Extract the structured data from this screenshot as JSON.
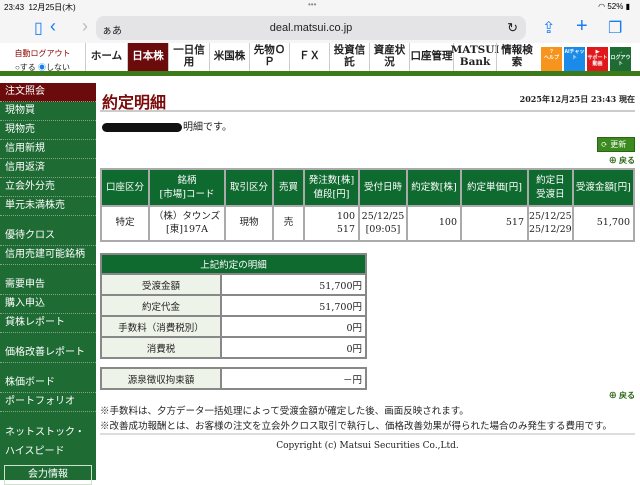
{
  "status_bar": {
    "time": "23:43",
    "date": "12月25日(木)",
    "battery": "52%"
  },
  "browser": {
    "aa": "ぁあ",
    "url": "deal.matsui.co.jp"
  },
  "nav": {
    "auto_logout": "自動ログアウト",
    "opt_on": "する",
    "opt_off": "しない",
    "selected": "しない",
    "items": [
      "ホーム",
      "日本株",
      "一日信用",
      "米国株",
      "先物ＯＰ",
      "ＦＸ",
      "投資信託",
      "資産状況",
      "口座管理",
      "MATSUI Bank",
      "情報検索"
    ],
    "active": "日本株",
    "icons": [
      {
        "label": "ヘルプ",
        "color": "#f7941d"
      },
      {
        "label": "AIチャット",
        "color": "#1a8be8"
      },
      {
        "label": "サポート動画",
        "color": "#e0181c"
      },
      {
        "label": "ログアウト",
        "color": "#1e6b34"
      }
    ]
  },
  "sidebar": {
    "groups": [
      [
        "注文照会",
        "現物買",
        "現物売",
        "信用新規",
        "信用返済",
        "立会外分売",
        "単元未満株売"
      ],
      [
        "優待クロス",
        "信用売建可能銘柄"
      ],
      [
        "需要申告",
        "購入申込",
        "貸株レポート"
      ],
      [
        "価格改善レポート"
      ],
      [
        "株価ボード",
        "ポートフォリオ"
      ]
    ],
    "extra": [
      "ネットストック・",
      "ハイスピード"
    ],
    "button": "会力情報",
    "active": "注文照会"
  },
  "page": {
    "title": "約定明細",
    "as_of": "2025年12月25日 23:43 現在",
    "message_suffix": "明細です。",
    "refresh": "更新",
    "back": "戻る"
  },
  "trade_table": {
    "headers": [
      "口座区分",
      [
        "銘柄",
        "[市場]コード"
      ],
      "取引区分",
      "売買",
      [
        "発注数[株]",
        "値段[円]"
      ],
      "受付日時",
      "約定数[株]",
      "約定単価[円]",
      [
        "約定日",
        "受渡日"
      ],
      "受渡金額[円]"
    ],
    "rows": [
      {
        "account": "特定",
        "name": "（株）タウンズ",
        "code": "[東]197A",
        "type": "現物",
        "side": "売",
        "order_qty": "100",
        "price": "517",
        "received_date": "25/12/25",
        "received_time": "[09:05]",
        "exec_qty": "100",
        "exec_price": "517",
        "trade_date": "25/12/25",
        "settle_date": "25/12/29",
        "amount": "51,700"
      }
    ]
  },
  "summary": {
    "title": "上記約定の明細",
    "rows": [
      {
        "label": "受渡金額",
        "value": "51,700円"
      },
      {
        "label": "約定代金",
        "value": "51,700円"
      },
      {
        "label": "手数料（消費税別）",
        "value": "0円"
      },
      {
        "label": "消費税",
        "value": "0円"
      }
    ],
    "withholding": {
      "label": "源泉徴収拘束額",
      "value": "－円"
    }
  },
  "notes": [
    "※手数料は、夕方データ一括処理によって受渡金額が確定した後、画面反映されます。",
    "※改善成功報酬とは、お客様の注文を立会外クロス取引で執行し、価格改善効果が得られた場合のみ発生する費用です。"
  ],
  "copyright": "Copyright (c) Matsui Securities Co.,Ltd."
}
